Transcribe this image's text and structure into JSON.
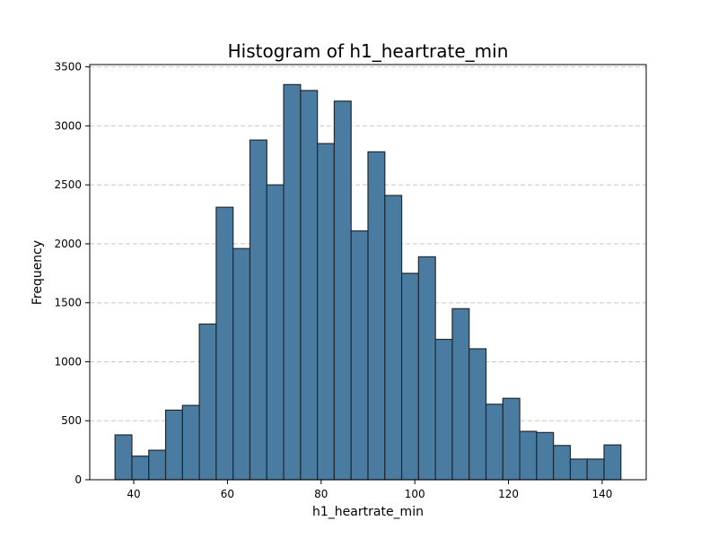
{
  "chart_data": {
    "type": "bar",
    "title": "Histogram of h1_heartrate_min",
    "xlabel": "h1_heartrate_min",
    "ylabel": "Frequency",
    "xlim": [
      30.6,
      149.4
    ],
    "ylim": [
      0,
      3520
    ],
    "grid": {
      "y": true,
      "x": false,
      "style": "dashed"
    },
    "bar_color": "#4a7ba0",
    "edge_color": "#1f2a33",
    "grid_color": "#c8c8c8",
    "bins": [
      {
        "x0": 36.0,
        "x1": 39.6,
        "count": 380
      },
      {
        "x0": 39.6,
        "x1": 43.2,
        "count": 200
      },
      {
        "x0": 43.2,
        "x1": 46.8,
        "count": 250
      },
      {
        "x0": 46.8,
        "x1": 50.4,
        "count": 590
      },
      {
        "x0": 50.4,
        "x1": 54.0,
        "count": 630
      },
      {
        "x0": 54.0,
        "x1": 57.6,
        "count": 1320
      },
      {
        "x0": 57.6,
        "x1": 61.2,
        "count": 2310
      },
      {
        "x0": 61.2,
        "x1": 64.8,
        "count": 1960
      },
      {
        "x0": 64.8,
        "x1": 68.4,
        "count": 2880
      },
      {
        "x0": 68.4,
        "x1": 72.0,
        "count": 2500
      },
      {
        "x0": 72.0,
        "x1": 75.6,
        "count": 3350
      },
      {
        "x0": 75.6,
        "x1": 79.2,
        "count": 3300
      },
      {
        "x0": 79.2,
        "x1": 82.8,
        "count": 2850
      },
      {
        "x0": 82.8,
        "x1": 86.4,
        "count": 3210
      },
      {
        "x0": 86.4,
        "x1": 90.0,
        "count": 2110
      },
      {
        "x0": 90.0,
        "x1": 93.6,
        "count": 2780
      },
      {
        "x0": 93.6,
        "x1": 97.2,
        "count": 2410
      },
      {
        "x0": 97.2,
        "x1": 100.8,
        "count": 1750
      },
      {
        "x0": 100.8,
        "x1": 104.4,
        "count": 1890
      },
      {
        "x0": 104.4,
        "x1": 108.0,
        "count": 1190
      },
      {
        "x0": 108.0,
        "x1": 111.6,
        "count": 1450
      },
      {
        "x0": 111.6,
        "x1": 115.2,
        "count": 1110
      },
      {
        "x0": 115.2,
        "x1": 118.8,
        "count": 640
      },
      {
        "x0": 118.8,
        "x1": 122.4,
        "count": 690
      },
      {
        "x0": 122.4,
        "x1": 126.0,
        "count": 410
      },
      {
        "x0": 126.0,
        "x1": 129.6,
        "count": 400
      },
      {
        "x0": 129.6,
        "x1": 133.2,
        "count": 290
      },
      {
        "x0": 133.2,
        "x1": 136.8,
        "count": 175
      },
      {
        "x0": 136.8,
        "x1": 140.4,
        "count": 175
      },
      {
        "x0": 140.4,
        "x1": 144.0,
        "count": 295
      }
    ],
    "x_ticks": [
      {
        "value": 40,
        "label": "40"
      },
      {
        "value": 60,
        "label": "60"
      },
      {
        "value": 80,
        "label": "80"
      },
      {
        "value": 100,
        "label": "100"
      },
      {
        "value": 120,
        "label": "120"
      },
      {
        "value": 140,
        "label": "140"
      }
    ],
    "y_ticks": [
      {
        "value": 0,
        "label": "0"
      },
      {
        "value": 500,
        "label": "500"
      },
      {
        "value": 1000,
        "label": "1000"
      },
      {
        "value": 1500,
        "label": "1500"
      },
      {
        "value": 2000,
        "label": "2000"
      },
      {
        "value": 2500,
        "label": "2500"
      },
      {
        "value": 3000,
        "label": "3000"
      },
      {
        "value": 3500,
        "label": "3500"
      }
    ]
  }
}
